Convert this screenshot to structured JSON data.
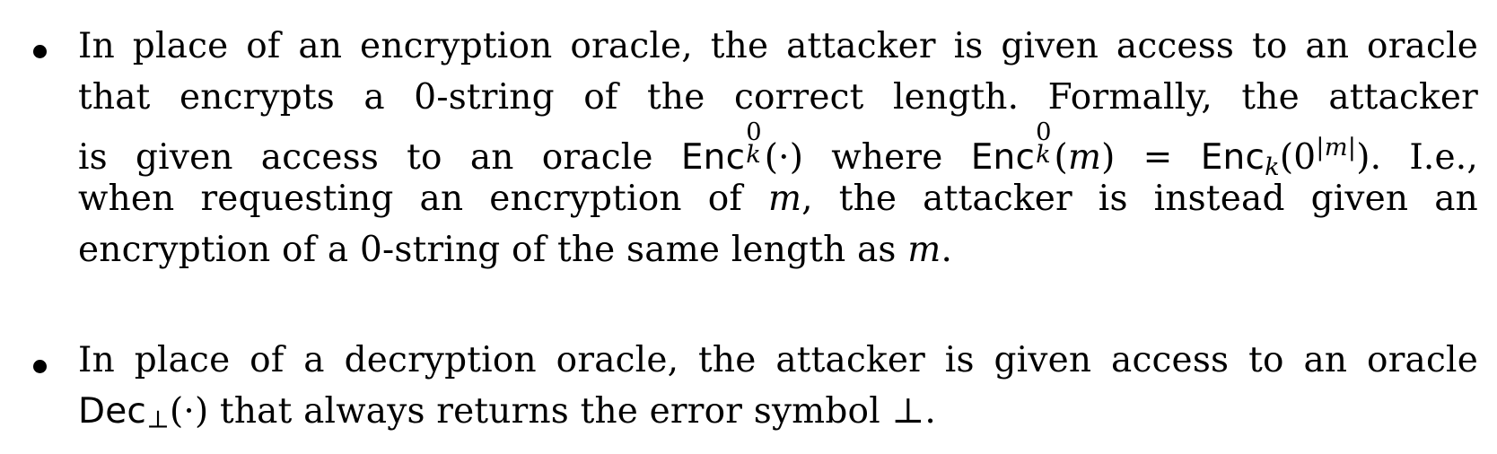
{
  "bullets": [
    {
      "lines": [
        {
          "text": "In place of an encryption oracle, the attacker is given access to an oracle"
        },
        {
          "text": "that encrypts a 0-string of the correct length.  Formally, the attacker"
        },
        {
          "seg1": "is given access to an oracle ",
          "enc1": "Enc",
          "enc1_sup": "0",
          "enc1_sub": "k",
          "arg1": "(·)",
          "seg2": " where ",
          "enc2": "Enc",
          "enc2_sup": "0",
          "enc2_sub": "k",
          "arg2_open": "(",
          "arg2_var": "m",
          "arg2_close": ")",
          "eq": " = ",
          "enc3": "Enc",
          "enc3_sub": "k",
          "arg3_open": "(0",
          "arg3_sup": "|m|",
          "arg3_close": ").",
          "seg3": "  I.e.,"
        },
        {
          "seg1": "when requesting an encryption of ",
          "var": "m",
          "seg2": ", the attacker is instead given an"
        },
        {
          "seg1": "encryption of a 0-string of the same length as ",
          "var": "m",
          "seg2": "."
        }
      ]
    },
    {
      "lines": [
        {
          "text": "In place of a decryption oracle, the attacker is given access to an oracle"
        },
        {
          "dec": "Dec",
          "dec_sub": "⊥",
          "arg": "(·)",
          "seg1": " that always returns the error symbol ⊥."
        }
      ]
    }
  ]
}
